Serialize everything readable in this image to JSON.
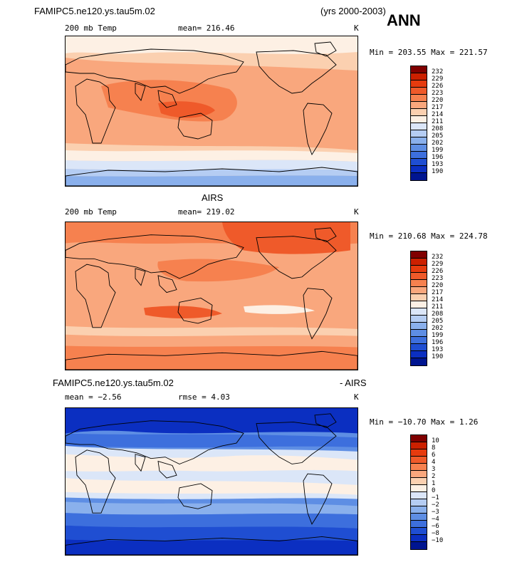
{
  "header": {
    "case_name": "FAMIPC5.ne120.ys.tau5m.02",
    "years": "(yrs 2000-2003)",
    "season": "ANN"
  },
  "panels": [
    {
      "title": "",
      "variable": "200 mb Temp",
      "stat1": "mean= 216.46",
      "stat2": "",
      "units": "K",
      "minmax": "Min = 203.55 Max = 221.57",
      "levels": [
        "232",
        "229",
        "226",
        "223",
        "220",
        "217",
        "214",
        "211",
        "208",
        "205",
        "202",
        "199",
        "196",
        "193",
        "190"
      ],
      "colors": [
        "#800000",
        "#cc2000",
        "#e63b0e",
        "#ef5a2a",
        "#f6814f",
        "#f9a77d",
        "#fbd0b0",
        "#fdf0e4",
        "#dbe6f8",
        "#b5cdf3",
        "#8ab0ec",
        "#5e8ee4",
        "#3d6fdd",
        "#1f4ed2",
        "#0b2fc1",
        "#001590"
      ]
    },
    {
      "title": "AIRS",
      "variable": "200 mb Temp",
      "stat1": "mean= 219.02",
      "stat2": "",
      "units": "K",
      "minmax": "Min = 210.68 Max = 224.78",
      "levels": [
        "232",
        "229",
        "226",
        "223",
        "220",
        "217",
        "214",
        "211",
        "208",
        "205",
        "202",
        "199",
        "196",
        "193",
        "190"
      ],
      "colors": [
        "#800000",
        "#cc2000",
        "#e63b0e",
        "#ef5a2a",
        "#f6814f",
        "#f9a77d",
        "#fbd0b0",
        "#fdf0e4",
        "#dbe6f8",
        "#b5cdf3",
        "#8ab0ec",
        "#5e8ee4",
        "#3d6fdd",
        "#1f4ed2",
        "#0b2fc1",
        "#001590"
      ]
    },
    {
      "title_left": "FAMIPC5.ne120.ys.tau5m.02",
      "title_right": "- AIRS",
      "stat1": "mean =  −2.56",
      "stat2": "rmse =   4.03",
      "units": "K",
      "minmax": "Min = −10.70 Max =   1.26",
      "levels": [
        "10",
        "8",
        "6",
        "4",
        "3",
        "2",
        "1",
        "0",
        "−1",
        "−2",
        "−3",
        "−4",
        "−6",
        "−8",
        "−10"
      ],
      "colors": [
        "#800000",
        "#cc2000",
        "#e63b0e",
        "#ef5a2a",
        "#f6814f",
        "#f9a77d",
        "#fbd0b0",
        "#fdf0e4",
        "#dbe6f8",
        "#b5cdf3",
        "#8ab0ec",
        "#5e8ee4",
        "#3d6fdd",
        "#1f4ed2",
        "#0b2fc1",
        "#001590"
      ]
    }
  ]
}
